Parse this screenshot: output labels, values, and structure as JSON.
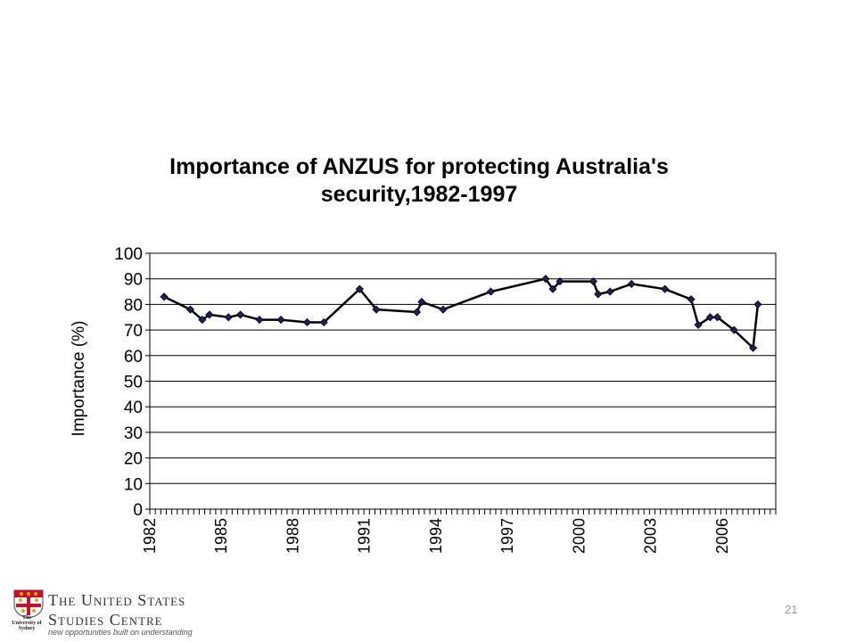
{
  "chart_data": {
    "type": "line",
    "title": "Importance of ANZUS for protecting Australia's security,1982-1997",
    "xlabel": "",
    "ylabel": "Importance (%)",
    "ylim": [
      0,
      100
    ],
    "xlim": [
      1982,
      2008.25
    ],
    "yticks": [
      0,
      10,
      20,
      30,
      40,
      50,
      60,
      70,
      80,
      90,
      100
    ],
    "xtick_labels": [
      "1982",
      "1985",
      "1988",
      "1991",
      "1994",
      "1997",
      "2000",
      "2003",
      "2006"
    ],
    "xtick_values": [
      1982,
      1985,
      1988,
      1991,
      1994,
      1997,
      2000,
      2003,
      2006
    ],
    "grid": "horizontal",
    "legend": "none",
    "series": [
      {
        "color": "#000000",
        "marker_color": "#1f1f5c",
        "x": [
          1982.6,
          1983.7,
          1984.2,
          1984.5,
          1985.3,
          1985.8,
          1986.6,
          1987.5,
          1988.6,
          1989.3,
          1990.8,
          1991.5,
          1993.2,
          1993.4,
          1994.3,
          1996.3,
          1998.6,
          1998.9,
          1999.2,
          2000.6,
          2000.8,
          2001.3,
          2002.2,
          2003.6,
          2004.7,
          2005.0,
          2005.5,
          2005.8,
          2006.5,
          2007.3,
          2007.5
        ],
        "y": [
          83,
          78,
          74,
          76,
          75,
          76,
          74,
          74,
          73,
          73,
          86,
          78,
          77,
          81,
          78,
          85,
          90,
          86,
          89,
          89,
          84,
          85,
          88,
          86,
          82,
          72,
          75,
          75,
          70,
          63,
          80
        ]
      }
    ]
  },
  "footer": {
    "org_line1": "The United States",
    "org_line2": "Studies Centre",
    "tagline": "new opportunities built on understanding",
    "crest_text": "The University of Sydney"
  },
  "page_number": "21",
  "colors": {
    "line": "#000000",
    "marker": "#1f1f5c",
    "crest_red": "#c8102e",
    "crest_gold": "#e0a800"
  }
}
